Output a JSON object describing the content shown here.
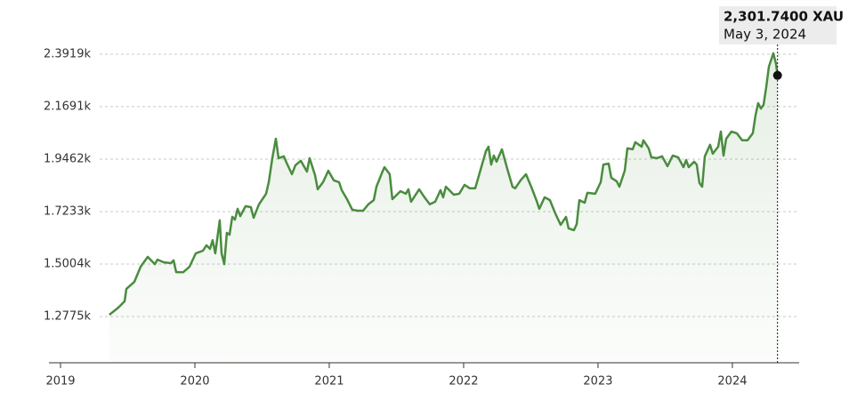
{
  "chart_data": {
    "type": "line",
    "color": "#4a8c3f",
    "area": true,
    "grid": true,
    "annotations": [
      "2,301.7400 XAU",
      "May 3, 2024"
    ],
    "xlim": [
      2018.914,
      2024.497
    ],
    "xticks": [
      2019,
      2020,
      2021,
      2022,
      2023,
      2024
    ],
    "ylim": [
      1081,
      2471
    ],
    "yticks": [
      {
        "value": 1277.5,
        "label": "1.2775k"
      },
      {
        "value": 1500.4,
        "label": "1.5004k"
      },
      {
        "value": 1723.3,
        "label": "1.7233k"
      },
      {
        "value": 1946.2,
        "label": "1.9462k"
      },
      {
        "value": 2169.1,
        "label": "2.1691k"
      },
      {
        "value": 2391.9,
        "label": "2.3919k"
      }
    ],
    "x": [
      2019.364,
      2019.43,
      2019.477,
      2019.49,
      2019.55,
      2019.596,
      2019.649,
      2019.702,
      2019.722,
      2019.768,
      2019.821,
      2019.841,
      2019.861,
      2019.914,
      2019.96,
      2020.007,
      2020.06,
      2020.086,
      2020.113,
      2020.132,
      2020.152,
      2020.185,
      2020.199,
      2020.219,
      2020.238,
      2020.258,
      2020.278,
      2020.298,
      2020.318,
      2020.338,
      2020.377,
      2020.417,
      2020.437,
      2020.477,
      2020.53,
      2020.55,
      2020.576,
      2020.603,
      2020.623,
      2020.662,
      2020.682,
      2020.722,
      2020.748,
      2020.788,
      2020.834,
      2020.854,
      2020.894,
      2020.914,
      2020.954,
      2020.993,
      2021.033,
      2021.073,
      2021.093,
      2021.132,
      2021.172,
      2021.212,
      2021.252,
      2021.291,
      2021.331,
      2021.351,
      2021.391,
      2021.411,
      2021.45,
      2021.47,
      2021.53,
      2021.57,
      2021.589,
      2021.609,
      2021.669,
      2021.709,
      2021.748,
      2021.788,
      2021.828,
      2021.848,
      2021.868,
      2021.927,
      2021.967,
      2022.007,
      2022.046,
      2022.086,
      2022.126,
      2022.166,
      2022.185,
      2022.205,
      2022.225,
      2022.245,
      2022.285,
      2022.325,
      2022.364,
      2022.384,
      2022.424,
      2022.464,
      2022.503,
      2022.543,
      2022.563,
      2022.603,
      2022.642,
      2022.682,
      2022.722,
      2022.762,
      2022.781,
      2022.821,
      2022.841,
      2022.861,
      2022.901,
      2022.921,
      2022.98,
      2023.02,
      2023.04,
      2023.079,
      2023.099,
      2023.139,
      2023.159,
      2023.199,
      2023.219,
      2023.258,
      2023.278,
      2023.325,
      2023.338,
      2023.377,
      2023.397,
      2023.437,
      2023.477,
      2023.517,
      2023.556,
      2023.596,
      2023.636,
      2023.656,
      2023.675,
      2023.715,
      2023.735,
      2023.755,
      2023.775,
      2023.795,
      2023.834,
      2023.854,
      2023.894,
      2023.914,
      2023.934,
      2023.954,
      2023.993,
      2024.033,
      2024.073,
      2024.113,
      2024.152,
      2024.172,
      2024.192,
      2024.212,
      2024.232,
      2024.252,
      2024.272,
      2024.305,
      2024.325,
      2024.336
    ],
    "values": [
      1285,
      1315,
      1342,
      1395,
      1425,
      1489,
      1531,
      1500,
      1519,
      1508,
      1504,
      1516,
      1466,
      1466,
      1489,
      1546,
      1557,
      1580,
      1565,
      1602,
      1546,
      1686,
      1546,
      1500,
      1633,
      1625,
      1701,
      1689,
      1735,
      1704,
      1746,
      1742,
      1697,
      1754,
      1799,
      1848,
      1950,
      2033,
      1950,
      1958,
      1931,
      1882,
      1920,
      1939,
      1893,
      1950,
      1878,
      1818,
      1848,
      1897,
      1856,
      1848,
      1814,
      1776,
      1731,
      1727,
      1727,
      1754,
      1772,
      1829,
      1886,
      1912,
      1882,
      1776,
      1810,
      1799,
      1818,
      1765,
      1818,
      1784,
      1754,
      1765,
      1814,
      1784,
      1829,
      1795,
      1799,
      1837,
      1822,
      1822,
      1901,
      1980,
      1999,
      1923,
      1961,
      1935,
      1988,
      1905,
      1829,
      1822,
      1856,
      1882,
      1829,
      1769,
      1735,
      1784,
      1772,
      1716,
      1667,
      1701,
      1652,
      1644,
      1670,
      1772,
      1761,
      1803,
      1799,
      1848,
      1923,
      1927,
      1867,
      1852,
      1829,
      1897,
      1992,
      1988,
      2018,
      1999,
      2026,
      1992,
      1954,
      1950,
      1958,
      1916,
      1961,
      1954,
      1912,
      1942,
      1912,
      1935,
      1923,
      1844,
      1829,
      1958,
      2007,
      1969,
      1999,
      2063,
      1961,
      2033,
      2063,
      2056,
      2026,
      2026,
      2056,
      2131,
      2184,
      2161,
      2177,
      2252,
      2339,
      2396,
      2350,
      2301.74
    ]
  }
}
